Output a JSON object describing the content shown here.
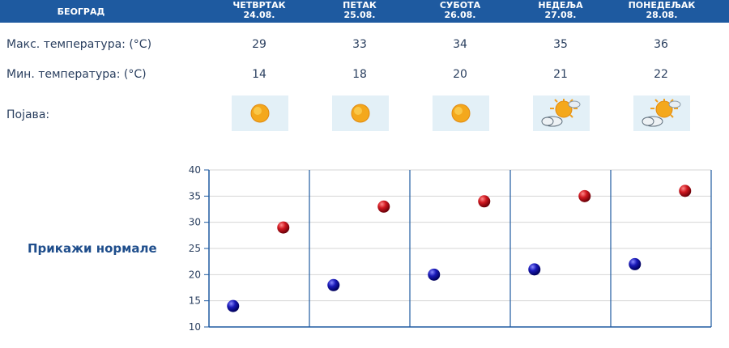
{
  "header": {
    "city": "БЕОГРАД",
    "days": [
      {
        "name": "ЧЕТВРТАК",
        "date": "24.08."
      },
      {
        "name": "ПЕТАК",
        "date": "25.08."
      },
      {
        "name": "СУБОТА",
        "date": "26.08."
      },
      {
        "name": "НЕДЕЉА",
        "date": "27.08."
      },
      {
        "name": "ПОНЕДЕЉАК",
        "date": "28.08."
      }
    ]
  },
  "rows": {
    "max_label": "Макс. температура: (°C)",
    "min_label": "Мин. температура: (°C)",
    "phenomenon_label": "Појава:"
  },
  "icons": [
    "sun-icon",
    "sun-icon",
    "sun-icon",
    "sun-cloud-icon",
    "sun-cloud-icon"
  ],
  "normals_link": "Прикажи нормале",
  "colors": {
    "header_bg": "#1e5aa0",
    "max_marker": "#c0141c",
    "min_marker": "#1a1aa8",
    "axis": "#1e5aa0"
  },
  "chart_data": {
    "type": "scatter",
    "categories": [
      "ЧЕТВРТАК",
      "ПЕТАК",
      "СУБОТА",
      "НЕДЕЉА",
      "ПОНЕДЕЉАК"
    ],
    "series": [
      {
        "values": [
          29,
          33,
          34,
          35,
          36
        ]
      },
      {
        "values": [
          14,
          18,
          20,
          21,
          22
        ]
      }
    ],
    "ylim": [
      10,
      40
    ],
    "yticks": [
      10,
      15,
      20,
      25,
      30,
      35,
      40
    ],
    "grid": true
  }
}
